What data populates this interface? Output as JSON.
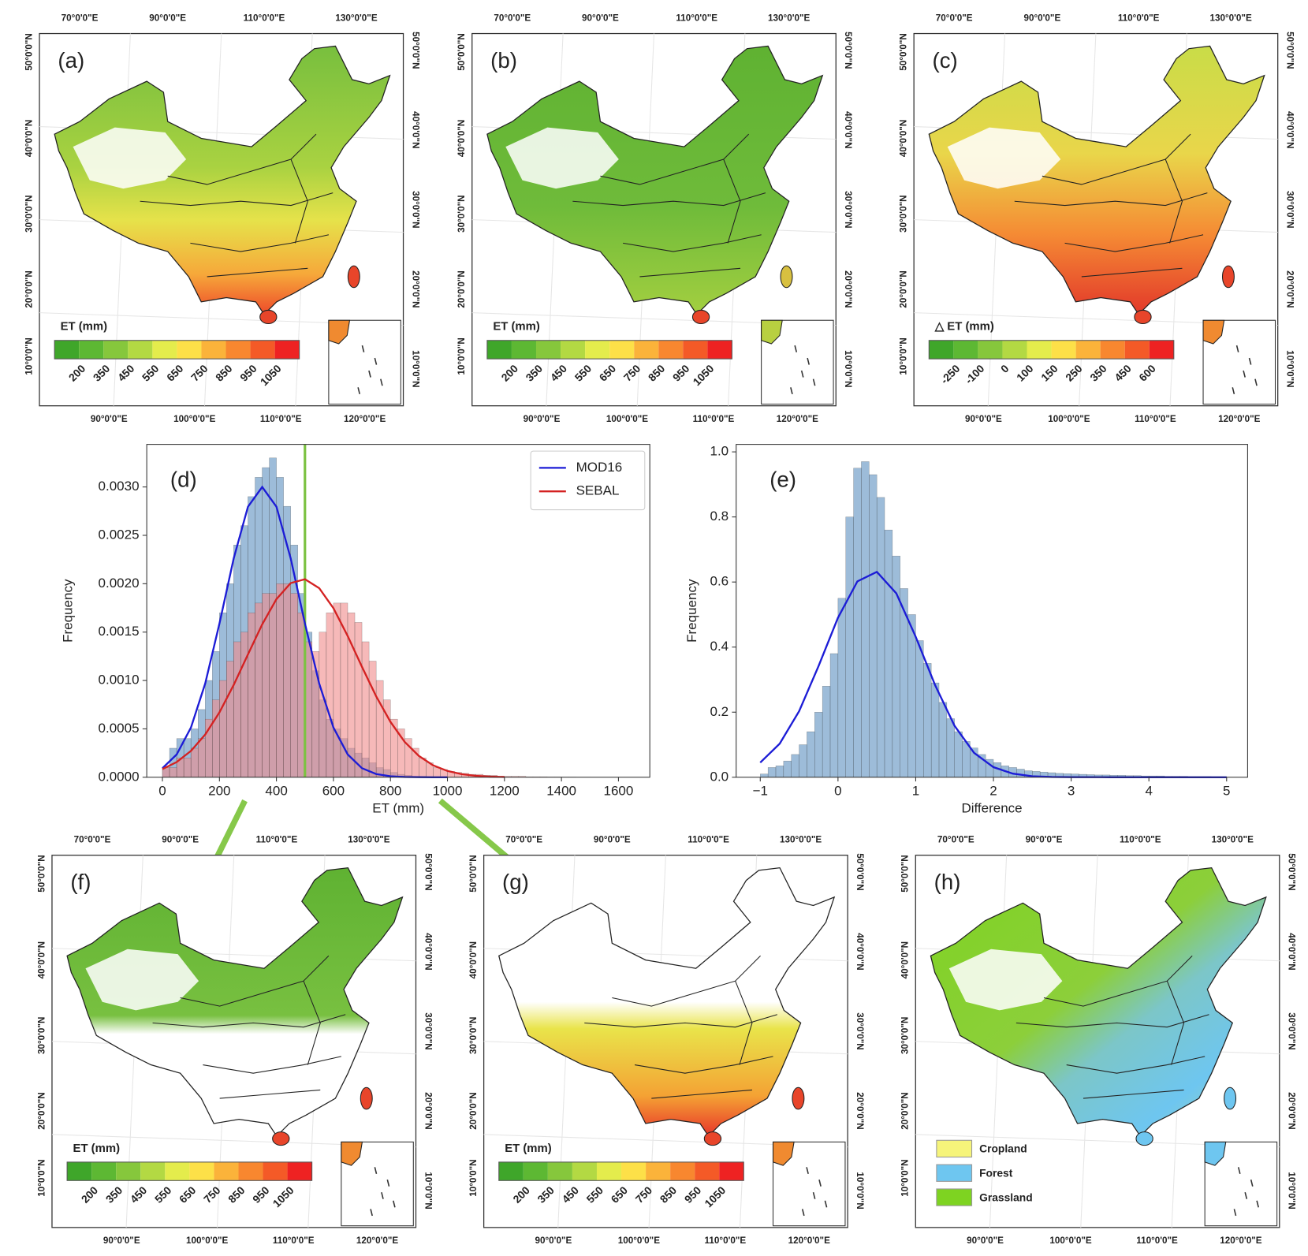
{
  "map_axes": {
    "top_lon": [
      "70°0'0\"E",
      "90°0'0\"E",
      "110°0'0\"E",
      "130°0'0\"E"
    ],
    "bottom_lon": [
      "90°0'0\"E",
      "100°0'0\"E",
      "110°0'0\"E",
      "120°0'0\"E"
    ],
    "lat": [
      "50°0'0\"N",
      "40°0'0\"N",
      "30°0'0\"N",
      "20°0'0\"N",
      "10°0'0\"N"
    ]
  },
  "maps": [
    {
      "label": "(a)",
      "colorbar": {
        "title": "ET (mm)",
        "ticks": [
          200,
          350,
          450,
          550,
          650,
          750,
          850,
          950,
          1050
        ],
        "colors": [
          "#3fa62a",
          "#5db833",
          "#86c73c",
          "#b3d943",
          "#e4ec4c",
          "#fde048",
          "#fbb33a",
          "#f8872f",
          "#f45a27",
          "#ee2222"
        ]
      }
    },
    {
      "label": "(b)",
      "colorbar": {
        "title": "ET (mm)",
        "ticks": [
          200,
          350,
          450,
          550,
          650,
          750,
          850,
          950,
          1050
        ],
        "colors": [
          "#3fa62a",
          "#5db833",
          "#86c73c",
          "#b3d943",
          "#e4ec4c",
          "#fde048",
          "#fbb33a",
          "#f8872f",
          "#f45a27",
          "#ee2222"
        ]
      }
    },
    {
      "label": "(c)",
      "colorbar": {
        "title": "△ ET (mm)",
        "ticks": [
          -250,
          -100,
          0,
          100,
          150,
          250,
          350,
          450,
          600
        ],
        "colors": [
          "#3fa62a",
          "#5db833",
          "#86c73c",
          "#b3d943",
          "#e4ec4c",
          "#fde048",
          "#fbb33a",
          "#f8872f",
          "#f45a27",
          "#ee2222"
        ]
      }
    },
    {
      "label": "(f)",
      "colorbar": {
        "title": "ET (mm)",
        "ticks": [
          200,
          350,
          450,
          550,
          650,
          750,
          850,
          950,
          1050
        ],
        "colors": [
          "#3fa62a",
          "#5db833",
          "#86c73c",
          "#b3d943",
          "#e4ec4c",
          "#fde048",
          "#fbb33a",
          "#f8872f",
          "#f45a27",
          "#ee2222"
        ]
      }
    },
    {
      "label": "(g)",
      "colorbar": {
        "title": "ET (mm)",
        "ticks": [
          200,
          350,
          450,
          550,
          650,
          750,
          850,
          950,
          1050
        ],
        "colors": [
          "#3fa62a",
          "#5db833",
          "#86c73c",
          "#b3d943",
          "#e4ec4c",
          "#fde048",
          "#fbb33a",
          "#f8872f",
          "#f45a27",
          "#ee2222"
        ]
      }
    },
    {
      "label": "(h)",
      "legend": [
        {
          "name": "Cropland",
          "color": "#f6f47a"
        },
        {
          "name": "Forest",
          "color": "#6ec6f0"
        },
        {
          "name": "Grassland",
          "color": "#7ed321"
        }
      ]
    }
  ],
  "chart_data": [
    {
      "type": "histogram",
      "label": "(d)",
      "xlabel": "ET (mm)",
      "ylabel": "Frequency",
      "xlim": [
        -55,
        1710
      ],
      "ylim": [
        0,
        0.00344
      ],
      "xticks": [
        0,
        200,
        400,
        600,
        800,
        1000,
        1200,
        1400,
        1600
      ],
      "yticks": [
        {
          "value": 0,
          "label": "0.0000"
        },
        0.0005,
        {
          "value": 0.001,
          "label": "0.0010"
        },
        0.0015,
        {
          "value": 0.002,
          "label": "0.0020"
        },
        0.0025,
        {
          "value": 0.003,
          "label": "0.0030"
        }
      ],
      "vline": {
        "x": 500,
        "color": "#7cc242"
      },
      "legend": "upper right",
      "series": [
        {
          "name": "MOD16",
          "color": "#1c1cd6",
          "bar_color": "#5b8fc0",
          "bins": [
            0,
            25,
            50,
            75,
            100,
            125,
            150,
            175,
            200,
            225,
            250,
            275,
            300,
            325,
            350,
            375,
            400,
            425,
            450,
            475,
            500,
            525,
            550,
            575,
            600,
            625,
            650,
            675,
            700,
            725,
            750,
            775,
            800,
            825,
            850,
            875,
            900,
            925,
            950,
            975,
            1000
          ],
          "values": [
            0.0001,
            0.0003,
            0.0004,
            0.0004,
            0.0005,
            0.0007,
            0.001,
            0.0013,
            0.0017,
            0.002,
            0.0024,
            0.0026,
            0.0029,
            0.0031,
            0.0032,
            0.0033,
            0.0031,
            0.0028,
            0.0024,
            0.0019,
            0.0015,
            0.0011,
            0.0008,
            0.0006,
            0.0005,
            0.0004,
            0.0003,
            0.00025,
            0.0002,
            0.00015,
            0.0001,
            8e-05,
            5e-05,
            3e-05,
            2e-05,
            1e-05,
            1e-05,
            5e-06,
            3e-06,
            2e-06
          ],
          "curve": {
            "x": [
              0,
              50,
              100,
              150,
              200,
              250,
              300,
              350,
              400,
              450,
              500,
              550,
              600,
              650,
              700,
              750,
              800,
              850,
              900,
              950,
              1000
            ],
            "values": [
              9.4e-05,
              0.000236,
              0.000513,
              0.000968,
              0.001588,
              0.002261,
              0.002795,
              0.003,
              0.002795,
              0.002261,
              0.001588,
              0.000968,
              0.000513,
              0.000236,
              9.4e-05,
              3.3e-05,
              1e-05,
              2.6e-06,
              6e-07,
              1e-07,
              0
            ]
          }
        },
        {
          "name": "SEBAL",
          "color": "#d42222",
          "bar_color": "#f08a8a",
          "bins": [
            0,
            25,
            50,
            75,
            100,
            125,
            150,
            175,
            200,
            225,
            250,
            275,
            300,
            325,
            350,
            375,
            400,
            425,
            450,
            475,
            500,
            525,
            550,
            575,
            600,
            625,
            650,
            675,
            700,
            725,
            750,
            775,
            800,
            825,
            850,
            875,
            900,
            925,
            950,
            975,
            1000,
            1025,
            1050,
            1075,
            1100,
            1125,
            1150,
            1175,
            1200,
            1225,
            1250,
            1275,
            1300,
            1325,
            1350,
            1375,
            1400,
            1425,
            1450,
            1475,
            1500
          ],
          "values": [
            0.0001,
            0.0001,
            0.0002,
            0.0002,
            0.0003,
            0.0004,
            0.0006,
            0.0008,
            0.001,
            0.0012,
            0.0014,
            0.0015,
            0.0017,
            0.0018,
            0.0019,
            0.0019,
            0.002,
            0.002,
            0.0019,
            0.0017,
            0.0014,
            0.0013,
            0.0015,
            0.0017,
            0.0018,
            0.0018,
            0.0017,
            0.0016,
            0.0014,
            0.0012,
            0.001,
            0.0008,
            0.0006,
            0.0005,
            0.0004,
            0.0003,
            0.0002,
            0.00015,
            0.0001,
            8e-05,
            6e-05,
            5e-05,
            4e-05,
            3e-05,
            3e-05,
            2e-05,
            2e-05,
            1e-05,
            1e-05,
            1e-05,
            1e-05,
            5e-06,
            5e-06,
            5e-06,
            3e-06,
            3e-06,
            2e-06,
            2e-06,
            1e-06,
            1e-06
          ],
          "curve": {
            "x": [
              0,
              50,
              100,
              150,
              200,
              250,
              300,
              350,
              400,
              450,
              500,
              550,
              600,
              650,
              700,
              750,
              800,
              850,
              900,
              950,
              1000,
              1050,
              1100,
              1150,
              1200
            ],
            "values": [
              8.4e-05,
              0.000157,
              0.000272,
              0.000441,
              0.000671,
              0.000954,
              0.001269,
              0.00158,
              0.001841,
              0.002007,
              0.002047,
              0.001954,
              0.001746,
              0.001459,
              0.001141,
              0.000835,
              0.000572,
              0.000366,
              0.00022,
              0.000123,
              6.5e-05,
              3.2e-05,
              1.5e-05,
              6e-06,
              2.5e-06
            ]
          }
        }
      ]
    },
    {
      "type": "histogram",
      "label": "(e)",
      "xlabel": "Difference",
      "ylabel": "Frequency",
      "xlim": [
        -1.31,
        5.27
      ],
      "ylim": [
        0,
        1.023
      ],
      "xticks": [
        {
          "value": -1,
          "label": "−1"
        },
        0,
        1,
        2,
        3,
        4,
        5
      ],
      "yticks": [
        {
          "value": 0,
          "label": "0.0"
        },
        0.2,
        0.4,
        0.6,
        0.8,
        {
          "value": 1,
          "label": "1.0"
        }
      ],
      "series": [
        {
          "color": "#1c1cd6",
          "bar_color": "#5b8fc0",
          "bins": [
            -1,
            -0.9,
            -0.8,
            -0.7,
            -0.6,
            -0.5,
            -0.4,
            -0.3,
            -0.2,
            -0.1,
            0,
            0.1,
            0.2,
            0.3,
            0.4,
            0.5,
            0.6,
            0.7,
            0.8,
            0.9,
            1,
            1.1,
            1.2,
            1.3,
            1.4,
            1.5,
            1.6,
            1.7,
            1.8,
            1.9,
            2,
            2.1,
            2.2,
            2.3,
            2.4,
            2.5,
            2.6,
            2.7,
            2.8,
            2.9,
            3,
            3.1,
            3.2,
            3.3,
            3.4,
            3.5,
            3.6,
            3.7,
            3.8,
            3.9,
            4,
            4.1,
            4.2,
            4.3,
            4.4,
            4.5,
            4.6,
            4.7,
            4.8,
            4.9,
            5
          ],
          "values": [
            0.01,
            0.03,
            0.035,
            0.05,
            0.07,
            0.1,
            0.14,
            0.2,
            0.28,
            0.38,
            0.55,
            0.8,
            0.95,
            0.97,
            0.93,
            0.86,
            0.76,
            0.68,
            0.58,
            0.5,
            0.42,
            0.35,
            0.29,
            0.23,
            0.18,
            0.14,
            0.11,
            0.09,
            0.07,
            0.055,
            0.045,
            0.035,
            0.03,
            0.025,
            0.02,
            0.018,
            0.016,
            0.014,
            0.012,
            0.011,
            0.01,
            0.009,
            0.008,
            0.007,
            0.007,
            0.006,
            0.006,
            0.005,
            0.005,
            0.004,
            0.004,
            0.004,
            0.003,
            0.003,
            0.003,
            0.002,
            0.002,
            0.002,
            0.001,
            0.001
          ],
          "curve": {
            "x": [
              -1,
              -0.75,
              -0.5,
              -0.25,
              0,
              0.25,
              0.5,
              0.75,
              1,
              1.25,
              1.5,
              1.75,
              2,
              2.25,
              2.5,
              2.75,
              3,
              3.5,
              4,
              4.5,
              5
            ],
            "values": [
              0.045,
              0.103,
              0.203,
              0.342,
              0.49,
              0.602,
              0.631,
              0.565,
              0.432,
              0.283,
              0.158,
              0.075,
              0.031,
              0.011,
              0.003,
              0.0009,
              0.0002,
              0,
              0,
              0,
              0
            ]
          }
        }
      ]
    }
  ]
}
